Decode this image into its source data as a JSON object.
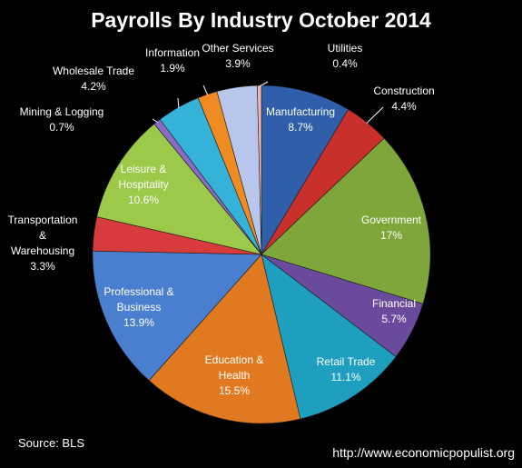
{
  "chart_data": {
    "type": "pie",
    "title": "Payrolls By Industry October 2014",
    "slices": [
      {
        "label": "Manufacturing",
        "value": 8.7,
        "value_label": "8.7%",
        "color": "#2f5fa8"
      },
      {
        "label": "Construction",
        "value": 4.4,
        "value_label": "4.4%",
        "color": "#c9302c"
      },
      {
        "label": "Government",
        "value": 17,
        "value_label": "17%",
        "color": "#7ea63a"
      },
      {
        "label": "Financial",
        "value": 5.7,
        "value_label": "5.7%",
        "color": "#6a4a9c"
      },
      {
        "label": "Retail Trade",
        "value": 11.1,
        "value_label": "11.1%",
        "color": "#1f9fc0"
      },
      {
        "label": "Education & Health",
        "value": 15.5,
        "value_label": "15.5%",
        "color": "#e0791f"
      },
      {
        "label": "Professional & Business",
        "value": 13.9,
        "value_label": "13.9%",
        "color": "#4a7fd0"
      },
      {
        "label": "Transportation & Warehousing",
        "value": 3.3,
        "value_label": "3.3%",
        "color": "#d73b3b"
      },
      {
        "label": "Leisure & Hospitality",
        "value": 10.6,
        "value_label": "10.6%",
        "color": "#9cc94a"
      },
      {
        "label": "Mining & Logging",
        "value": 0.7,
        "value_label": "0.7%",
        "color": "#8b6cc4"
      },
      {
        "label": "Wholesale Trade",
        "value": 4.2,
        "value_label": "4.2%",
        "color": "#35b2d8"
      },
      {
        "label": "Information",
        "value": 1.9,
        "value_label": "1.9%",
        "color": "#f08a22"
      },
      {
        "label": "Other Services",
        "value": 3.9,
        "value_label": "3.9%",
        "color": "#b7c6ea"
      },
      {
        "label": "Utilities",
        "value": 0.4,
        "value_label": "0.4%",
        "color": "#f2b5b5"
      }
    ]
  },
  "footer": {
    "source": "Source:  BLS",
    "url": "http://www.economicpopulist.org"
  }
}
